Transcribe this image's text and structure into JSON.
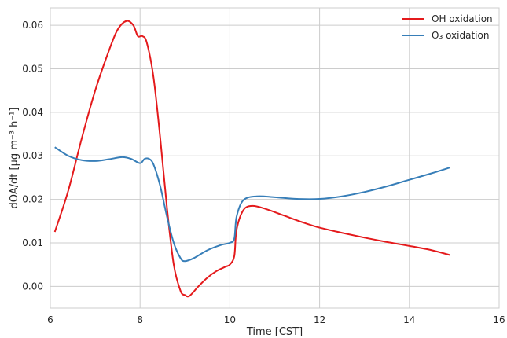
{
  "chart_data": {
    "type": "line",
    "title": "",
    "xlabel": "Time [CST]",
    "ylabel": "dOA/dt [μg m⁻³ h⁻¹]",
    "xlim": [
      6,
      16
    ],
    "ylim": [
      -0.005,
      0.064
    ],
    "xticks": [
      6,
      8,
      10,
      12,
      14,
      16
    ],
    "yticks": [
      0.0,
      0.01,
      0.02,
      0.03,
      0.04,
      0.05,
      0.06
    ],
    "grid": true,
    "legend_position": "top-right",
    "series": [
      {
        "name": "OH oxidation",
        "color": "#e41a1c",
        "points": [
          [
            6.1,
            0.0125
          ],
          [
            6.4,
            0.022
          ],
          [
            6.7,
            0.034
          ],
          [
            7.0,
            0.045
          ],
          [
            7.3,
            0.054
          ],
          [
            7.5,
            0.059
          ],
          [
            7.7,
            0.061
          ],
          [
            7.85,
            0.06
          ],
          [
            7.95,
            0.0575
          ],
          [
            8.05,
            0.0575
          ],
          [
            8.15,
            0.056
          ],
          [
            8.3,
            0.048
          ],
          [
            8.45,
            0.034
          ],
          [
            8.6,
            0.018
          ],
          [
            8.75,
            0.005
          ],
          [
            8.9,
            -0.001
          ],
          [
            9.0,
            -0.002
          ],
          [
            9.1,
            -0.0022
          ],
          [
            9.3,
            0.0
          ],
          [
            9.5,
            0.002
          ],
          [
            9.7,
            0.0035
          ],
          [
            9.9,
            0.0045
          ],
          [
            10.0,
            0.005
          ],
          [
            10.1,
            0.007
          ],
          [
            10.15,
            0.013
          ],
          [
            10.3,
            0.0175
          ],
          [
            10.5,
            0.0185
          ],
          [
            10.8,
            0.0178
          ],
          [
            11.2,
            0.0163
          ],
          [
            11.6,
            0.0148
          ],
          [
            12.0,
            0.0135
          ],
          [
            12.5,
            0.0123
          ],
          [
            13.0,
            0.0112
          ],
          [
            13.5,
            0.0102
          ],
          [
            14.0,
            0.0093
          ],
          [
            14.5,
            0.0083
          ],
          [
            14.9,
            0.0072
          ]
        ]
      },
      {
        "name": "O₃ oxidation",
        "color": "#377eb8",
        "points": [
          [
            6.1,
            0.032
          ],
          [
            6.4,
            0.03
          ],
          [
            6.7,
            0.029
          ],
          [
            7.0,
            0.0288
          ],
          [
            7.3,
            0.0292
          ],
          [
            7.6,
            0.0297
          ],
          [
            7.8,
            0.0293
          ],
          [
            8.0,
            0.0283
          ],
          [
            8.1,
            0.0293
          ],
          [
            8.2,
            0.0293
          ],
          [
            8.3,
            0.028
          ],
          [
            8.45,
            0.023
          ],
          [
            8.6,
            0.016
          ],
          [
            8.75,
            0.01
          ],
          [
            8.9,
            0.0065
          ],
          [
            9.0,
            0.0058
          ],
          [
            9.2,
            0.0065
          ],
          [
            9.5,
            0.0083
          ],
          [
            9.8,
            0.0095
          ],
          [
            10.0,
            0.01
          ],
          [
            10.1,
            0.011
          ],
          [
            10.15,
            0.016
          ],
          [
            10.3,
            0.0198
          ],
          [
            10.6,
            0.0207
          ],
          [
            11.0,
            0.0205
          ],
          [
            11.5,
            0.0201
          ],
          [
            12.0,
            0.0201
          ],
          [
            12.5,
            0.0207
          ],
          [
            13.0,
            0.0217
          ],
          [
            13.5,
            0.023
          ],
          [
            14.0,
            0.0245
          ],
          [
            14.5,
            0.026
          ],
          [
            14.9,
            0.0273
          ]
        ]
      }
    ]
  }
}
